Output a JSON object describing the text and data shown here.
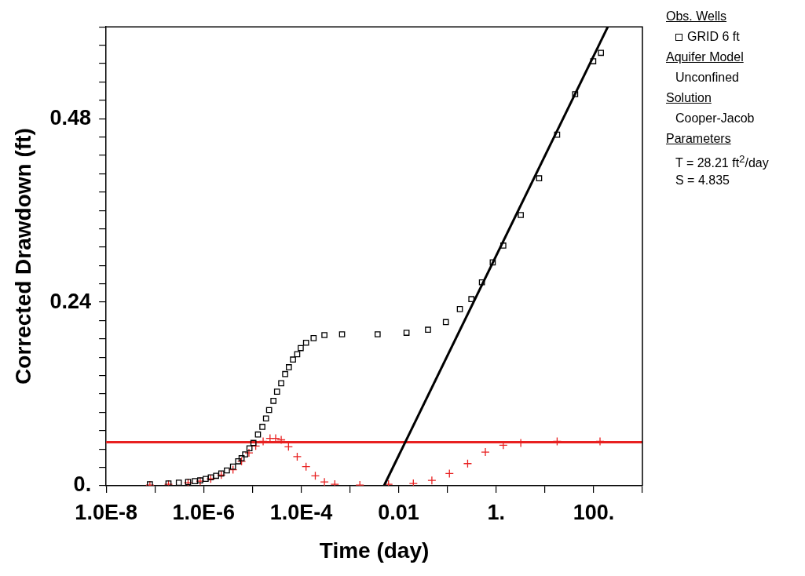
{
  "chart_data": {
    "type": "scatter",
    "xlabel": "Time (day)",
    "ylabel": "Corrected Drawdown (ft)",
    "legend_title": "Obs. Wells",
    "legend": "right",
    "grid": false,
    "log": "x",
    "xlim": [
      1e-08,
      1000
    ],
    "xticks": [
      {
        "value": 1e-08,
        "label": "1.0E-8"
      },
      {
        "value": 1e-07,
        "label": null
      },
      {
        "value": 1e-06,
        "label": "1.0E-6"
      },
      {
        "value": 1e-05,
        "label": null
      },
      {
        "value": 0.0001,
        "label": "1.0E-4"
      },
      {
        "value": 0.001,
        "label": null
      },
      {
        "value": 0.01,
        "label": "0.01"
      },
      {
        "value": 0.1,
        "label": null
      },
      {
        "value": 1,
        "label": "1."
      },
      {
        "value": 10,
        "label": null
      },
      {
        "value": 100,
        "label": "100."
      },
      {
        "value": 1000,
        "label": null
      }
    ],
    "ylim": [
      0,
      0.6
    ],
    "yticks": [
      {
        "value": 0,
        "label": "0."
      },
      {
        "value": 0.024,
        "label": null
      },
      {
        "value": 0.048,
        "label": null
      },
      {
        "value": 0.072,
        "label": null
      },
      {
        "value": 0.096,
        "label": null
      },
      {
        "value": 0.12,
        "label": null
      },
      {
        "value": 0.144,
        "label": null
      },
      {
        "value": 0.168,
        "label": null
      },
      {
        "value": 0.192,
        "label": null
      },
      {
        "value": 0.216,
        "label": null
      },
      {
        "value": 0.24,
        "label": "0.24"
      },
      {
        "value": 0.264,
        "label": null
      },
      {
        "value": 0.288,
        "label": null
      },
      {
        "value": 0.312,
        "label": null
      },
      {
        "value": 0.336,
        "label": null
      },
      {
        "value": 0.36,
        "label": null
      },
      {
        "value": 0.384,
        "label": null
      },
      {
        "value": 0.408,
        "label": null
      },
      {
        "value": 0.432,
        "label": null
      },
      {
        "value": 0.456,
        "label": null
      },
      {
        "value": 0.48,
        "label": "0.48"
      },
      {
        "value": 0.504,
        "label": null
      },
      {
        "value": 0.528,
        "label": null
      },
      {
        "value": 0.552,
        "label": null
      },
      {
        "value": 0.576,
        "label": null
      },
      {
        "value": 0.6,
        "label": null
      }
    ],
    "ref_lines": [
      {
        "axis": "y",
        "value": 0.057,
        "color": "#e82020"
      }
    ],
    "series": [
      {
        "name": "GRID 6 ft",
        "marker": "square",
        "color": "#000000",
        "x": [
          7.9e-08,
          1.9e-07,
          3.1e-07,
          4.8e-07,
          6.6e-07,
          8.5e-07,
          1.1e-06,
          1.4e-06,
          1.8e-06,
          2.3e-06,
          3e-06,
          4e-06,
          5.1e-06,
          6e-06,
          7.1e-06,
          8.7e-06,
          1.05e-05,
          1.3e-05,
          1.6e-05,
          1.9e-05,
          2.2e-05,
          2.7e-05,
          3.2e-05,
          3.9e-05,
          4.7e-05,
          5.6e-05,
          6.8e-05,
          8.3e-05,
          9.8e-05,
          0.000126,
          0.00018,
          0.0003,
          0.00069,
          0.0037,
          0.0145,
          0.04,
          0.093,
          0.18,
          0.31,
          0.51,
          0.85,
          1.4,
          3.2,
          7.6,
          17.8,
          41.7,
          98,
          141
        ],
        "values": [
          0.002,
          0.003,
          0.004,
          0.005,
          0.006,
          0.007,
          0.009,
          0.011,
          0.013,
          0.016,
          0.02,
          0.025,
          0.032,
          0.036,
          0.041,
          0.049,
          0.056,
          0.067,
          0.077,
          0.088,
          0.099,
          0.111,
          0.123,
          0.134,
          0.146,
          0.155,
          0.165,
          0.172,
          0.18,
          0.187,
          0.193,
          0.197,
          0.198,
          0.198,
          0.2,
          0.204,
          0.214,
          0.231,
          0.244,
          0.266,
          0.292,
          0.314,
          0.354,
          0.402,
          0.459,
          0.512,
          0.555,
          0.566
        ]
      },
      {
        "marker": "cross",
        "color": "#e82020",
        "x": [
          7.9e-08,
          1.9e-07,
          4.8e-07,
          8.5e-07,
          1.4e-06,
          2.3e-06,
          4e-06,
          6e-06,
          8.5e-06,
          1.17e-05,
          1.66e-05,
          2.3e-05,
          3e-05,
          3.9e-05,
          5.5e-05,
          8.3e-05,
          0.000126,
          0.000195,
          0.0003,
          0.00049,
          0.0016,
          0.0062,
          0.02,
          0.048,
          0.11,
          0.26,
          0.6,
          1.4,
          3.2,
          17.8,
          135
        ],
        "values": [
          0.001,
          0.002,
          0.004,
          0.006,
          0.009,
          0.014,
          0.021,
          0.032,
          0.043,
          0.052,
          0.058,
          0.062,
          0.062,
          0.06,
          0.051,
          0.038,
          0.025,
          0.013,
          0.005,
          0.002,
          0.001,
          0.002,
          0.003,
          0.007,
          0.016,
          0.029,
          0.044,
          0.053,
          0.056,
          0.058,
          0.058
        ]
      },
      {
        "type": "line",
        "marker": "none",
        "color": "#000000",
        "x": [
          0.005,
          195
        ],
        "values": [
          0,
          0.6
        ]
      }
    ],
    "annotations": [
      "Aquifer Model",
      "Unconfined",
      "Solution",
      "Cooper-Jacob",
      "Parameters",
      "T = 28.21 ft$^{2}$/day",
      "S = 4.835"
    ]
  }
}
